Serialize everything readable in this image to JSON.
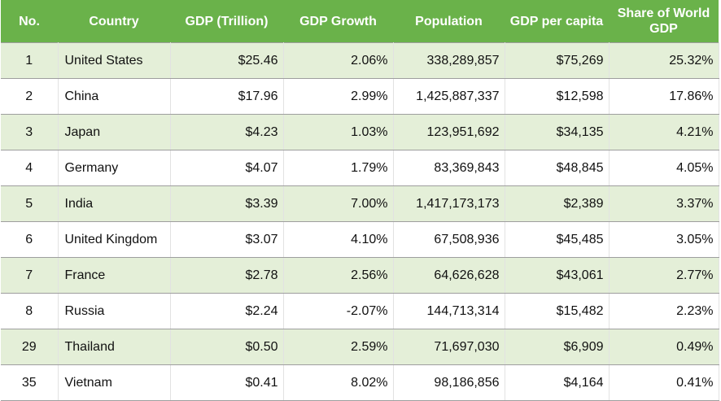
{
  "table": {
    "headers": [
      "No.",
      "Country",
      "GDP (Trillion)",
      "GDP Growth",
      "Population",
      "GDP per capita",
      "Share of World GDP"
    ],
    "rows": [
      {
        "no": "1",
        "country": "United States",
        "gdp": "$25.46",
        "growth": "2.06%",
        "population": "338,289,857",
        "per_capita": "$75,269",
        "share": "25.32%"
      },
      {
        "no": "2",
        "country": "China",
        "gdp": "$17.96",
        "growth": "2.99%",
        "population": "1,425,887,337",
        "per_capita": "$12,598",
        "share": "17.86%"
      },
      {
        "no": "3",
        "country": "Japan",
        "gdp": "$4.23",
        "growth": "1.03%",
        "population": "123,951,692",
        "per_capita": "$34,135",
        "share": "4.21%"
      },
      {
        "no": "4",
        "country": "Germany",
        "gdp": "$4.07",
        "growth": "1.79%",
        "population": "83,369,843",
        "per_capita": "$48,845",
        "share": "4.05%"
      },
      {
        "no": "5",
        "country": "India",
        "gdp": "$3.39",
        "growth": "7.00%",
        "population": "1,417,173,173",
        "per_capita": "$2,389",
        "share": "3.37%"
      },
      {
        "no": "6",
        "country": "United Kingdom",
        "gdp": "$3.07",
        "growth": "4.10%",
        "population": "67,508,936",
        "per_capita": "$45,485",
        "share": "3.05%"
      },
      {
        "no": "7",
        "country": "France",
        "gdp": "$2.78",
        "growth": "2.56%",
        "population": "64,626,628",
        "per_capita": "$43,061",
        "share": "2.77%"
      },
      {
        "no": "8",
        "country": "Russia",
        "gdp": "$2.24",
        "growth": "-2.07%",
        "population": "144,713,314",
        "per_capita": "$15,482",
        "share": "2.23%"
      },
      {
        "no": "29",
        "country": "Thailand",
        "gdp": "$0.50",
        "growth": "2.59%",
        "population": "71,697,030",
        "per_capita": "$6,909",
        "share": "0.49%"
      },
      {
        "no": "35",
        "country": "Vietnam",
        "gdp": "$0.41",
        "growth": "8.02%",
        "population": "98,186,856",
        "per_capita": "$4,164",
        "share": "0.41%"
      }
    ]
  },
  "colors": {
    "header_bg": "#6ab24a",
    "header_text": "#ffffff",
    "stripe_bg": "#e4efd8",
    "row_bg": "#ffffff"
  }
}
